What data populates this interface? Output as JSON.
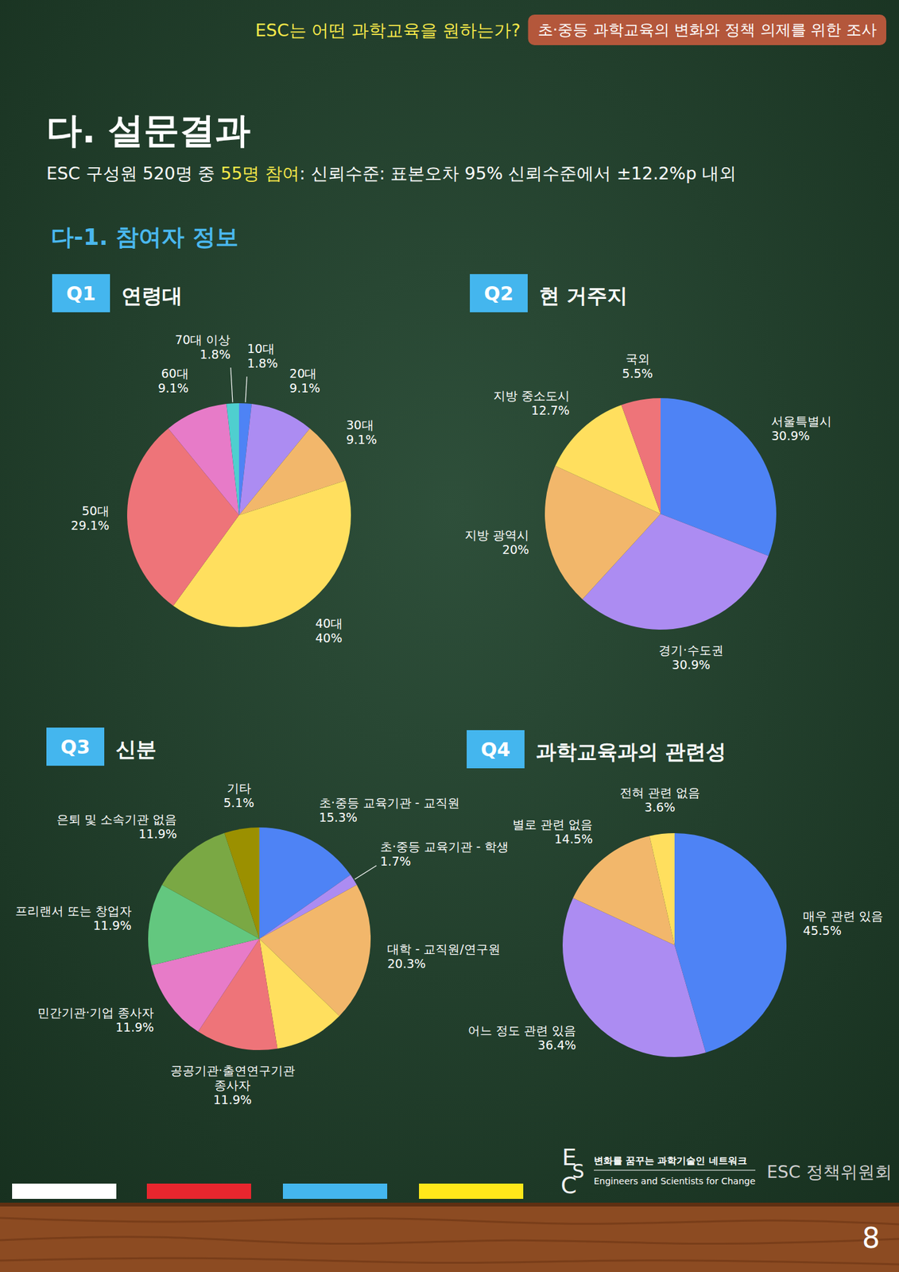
{
  "header": {
    "question": "ESC는 어떤 과학교육을 원하는가?",
    "badge": "초·중등 과학교육의 변화와 정책 의제를 위한 조사"
  },
  "section": {
    "title": "다. 설문결과",
    "summary": {
      "before": "ESC 구성원 520명 중 ",
      "highlight": "55명 참여",
      "after": ": 신뢰수준: 표본오차 95% 신뢰수준에서 ±12.2%p 내외"
    },
    "subtitle": "다-1. 참여자 정보"
  },
  "chart_data": [
    {
      "type": "pie",
      "label": "Q1",
      "title": "연령대",
      "categories": [
        "10대",
        "20대",
        "30대",
        "40대",
        "50대",
        "60대",
        "70대 이상"
      ],
      "values": [
        1.8,
        9.1,
        9.1,
        40,
        29.1,
        9.1,
        1.8
      ],
      "value_labels": [
        "1.8%",
        "9.1%",
        "9.1%",
        "40%",
        "29.1%",
        "9.1%",
        "1.8%"
      ],
      "colors": [
        "#4e83f5",
        "#ac8cf2",
        "#f2b76b",
        "#ffdf5e",
        "#ee7479",
        "#e77bc8",
        "#4fcfcf"
      ],
      "data_labels": true
    },
    {
      "type": "pie",
      "label": "Q2",
      "title": "현 거주지",
      "categories": [
        "서울특별시",
        "경기·수도권",
        "지방 광역시",
        "지방 중소도시",
        "국외"
      ],
      "values": [
        30.9,
        30.9,
        20,
        12.7,
        5.5
      ],
      "value_labels": [
        "30.9%",
        "30.9%",
        "20%",
        "12.7%",
        "5.5%"
      ],
      "colors": [
        "#4e83f5",
        "#ac8cf2",
        "#f2b76b",
        "#ffdf5e",
        "#ee7479"
      ],
      "data_labels": true
    },
    {
      "type": "pie",
      "label": "Q3",
      "title": "신분",
      "categories": [
        "초·중등 교육기관 - 교직원",
        "초·중등 교육기관 - 학생",
        "대학 - 교직원/연구원",
        null,
        "공공기관·출연연구기관 종사자",
        "민간기관·기업 종사자",
        "프리랜서 또는 창업자",
        "은퇴 및 소속기관 없음",
        "기타"
      ],
      "values": [
        15.3,
        1.7,
        20.3,
        10.2,
        11.9,
        11.9,
        11.9,
        11.9,
        5.1
      ],
      "value_labels": [
        "15.3%",
        "1.7%",
        "20.3%",
        null,
        "11.9%",
        "11.9%",
        "11.9%",
        "11.9%",
        "5.1%"
      ],
      "colors": [
        "#4e83f5",
        "#ac8cf2",
        "#f2b76b",
        "#ffdf5e",
        "#ee7479",
        "#e77bc8",
        "#63c77f",
        "#7aa844",
        "#9b9000"
      ],
      "data_labels": true
    },
    {
      "type": "pie",
      "label": "Q4",
      "title": "과학교육과의 관련성",
      "categories": [
        "매우 관련 있음",
        "어느 정도 관련 있음",
        "별로 관련 없음",
        "전혀 관련 없음"
      ],
      "values": [
        45.5,
        36.4,
        14.5,
        3.6
      ],
      "value_labels": [
        "45.5%",
        "36.4%",
        "14.5%",
        "3.6%"
      ],
      "colors": [
        "#4e83f5",
        "#ac8cf2",
        "#f2b76b",
        "#ffdf5e"
      ],
      "data_labels": true
    }
  ],
  "footer": {
    "logo": "ESC",
    "org_ko": "변화를 꿈꾸는 과학기술인 네트워크",
    "org_en": "Engineers and Scientists for Change",
    "committee": "ESC 정책위원회",
    "page": "8"
  }
}
